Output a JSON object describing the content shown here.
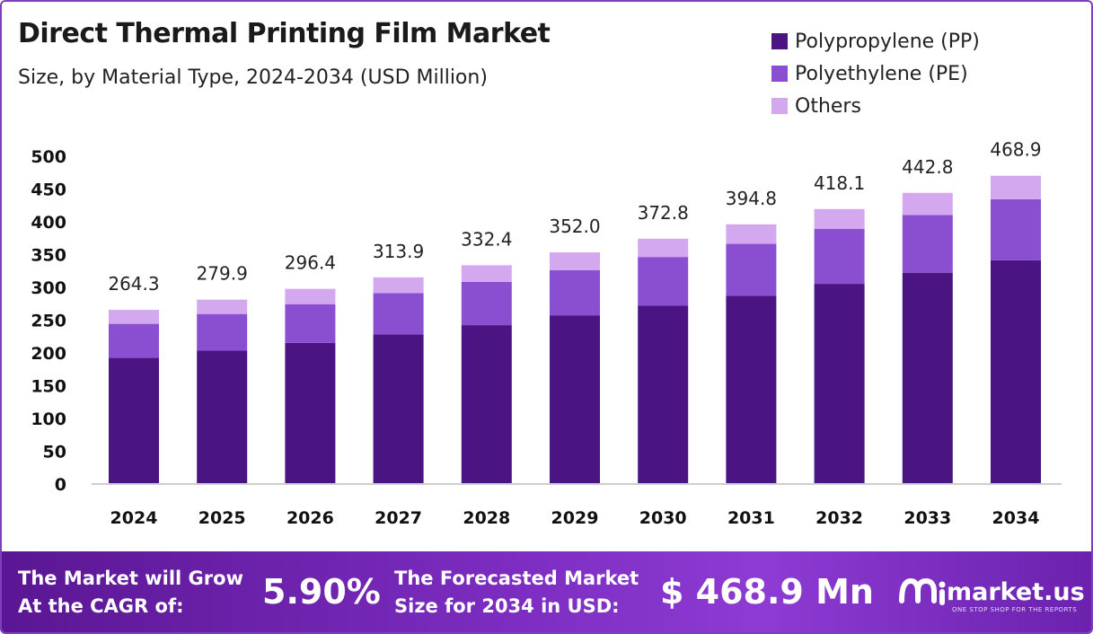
{
  "header": {
    "title": "Direct Thermal Printing Film Market",
    "subtitle": "Size, by Material Type, 2024-2034 (USD Million)"
  },
  "legend": {
    "items": [
      {
        "label": "Polypropylene (PP)",
        "color": "#4a1582"
      },
      {
        "label": "Polyethylene (PE)",
        "color": "#8a4fd0"
      },
      {
        "label": "Others",
        "color": "#d3a8ee"
      }
    ]
  },
  "chart_data": {
    "type": "bar",
    "stacked": true,
    "categories": [
      "2024",
      "2025",
      "2026",
      "2027",
      "2028",
      "2029",
      "2030",
      "2031",
      "2032",
      "2033",
      "2034"
    ],
    "series": [
      {
        "name": "Polypropylene (PP)",
        "color": "#4a1582",
        "values": [
          191,
          202,
          214,
          227,
          241,
          256,
          271,
          286,
          304,
          321,
          340
        ]
      },
      {
        "name": "Polyethylene (PE)",
        "color": "#8a4fd0",
        "values": [
          52,
          56,
          59,
          63,
          66,
          69,
          74,
          79,
          84,
          88,
          93
        ]
      },
      {
        "name": "Others",
        "color": "#d3a8ee",
        "values": [
          21.3,
          21.9,
          23.4,
          23.9,
          25.4,
          27.0,
          27.8,
          29.8,
          30.1,
          33.8,
          35.9
        ]
      }
    ],
    "totals": [
      264.3,
      279.9,
      296.4,
      313.9,
      332.4,
      352.0,
      372.8,
      394.8,
      418.1,
      442.8,
      468.9
    ],
    "total_labels": [
      "264.3",
      "279.9",
      "296.4",
      "313.9",
      "332.4",
      "352.0",
      "372.8",
      "394.8",
      "418.1",
      "442.8",
      "468.9"
    ],
    "yticks": [
      0,
      50,
      100,
      150,
      200,
      250,
      300,
      350,
      400,
      450,
      500
    ],
    "ylim": [
      0,
      500
    ],
    "grid": false,
    "legend_position": "top-right"
  },
  "banner": {
    "cagr_label_line1": "The Market will Grow",
    "cagr_label_line2": "At the CAGR of:",
    "cagr_value": "5.90%",
    "forecast_label_line1": "The Forecasted Market",
    "forecast_label_line2": "Size for 2034 in USD:",
    "forecast_value": "$ 468.9 Mn",
    "brand_name": "market.us",
    "brand_tagline": "ONE STOP SHOP FOR THE REPORTS"
  }
}
